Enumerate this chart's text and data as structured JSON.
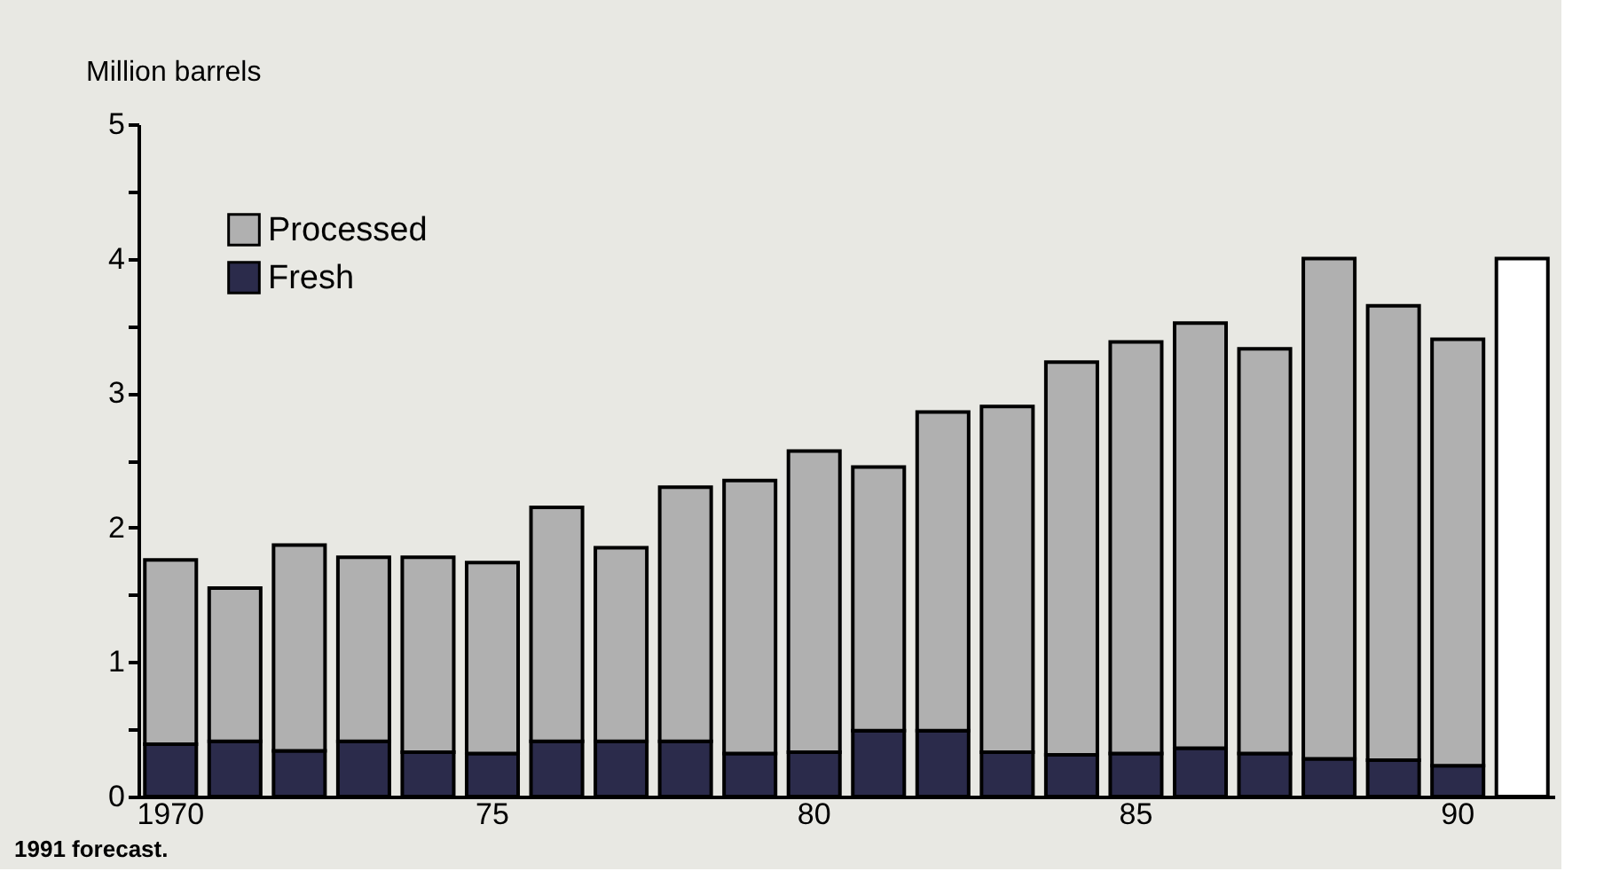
{
  "chart_data": {
    "type": "bar",
    "stacked": true,
    "ylabel": "Million barrels",
    "categories": [
      "1970",
      null,
      null,
      null,
      null,
      "75",
      null,
      null,
      null,
      null,
      "80",
      null,
      null,
      null,
      null,
      "85",
      null,
      null,
      null,
      null,
      "90",
      null
    ],
    "series": [
      {
        "name": "Fresh",
        "color": "#2b2b4b",
        "values": [
          0.39,
          0.41,
          0.34,
          0.41,
          0.33,
          0.32,
          0.41,
          0.41,
          0.41,
          0.32,
          0.33,
          0.49,
          0.49,
          0.33,
          0.31,
          0.32,
          0.36,
          0.32,
          0.28,
          0.27,
          0.23,
          null
        ]
      },
      {
        "name": "Processed",
        "color": "#b0b0b0",
        "values": [
          1.37,
          1.14,
          1.53,
          1.37,
          1.45,
          1.42,
          1.74,
          1.44,
          1.89,
          2.03,
          2.24,
          1.96,
          2.37,
          2.57,
          2.92,
          3.06,
          3.16,
          3.01,
          3.72,
          3.38,
          3.17,
          null
        ]
      },
      {
        "color": "#ffffff",
        "values": [
          null,
          null,
          null,
          null,
          null,
          null,
          null,
          null,
          null,
          null,
          null,
          null,
          null,
          null,
          null,
          null,
          null,
          null,
          null,
          null,
          null,
          4.0
        ]
      }
    ],
    "ylim": [
      0,
      5
    ],
    "yticks": [
      0,
      {
        "value": 0.5,
        "label": null
      },
      1,
      {
        "value": 1.5,
        "label": null
      },
      2,
      {
        "value": 2.5,
        "label": null
      },
      3,
      {
        "value": 3.5,
        "label": null
      },
      4,
      {
        "value": 4.5,
        "label": null
      },
      5
    ],
    "grid": false,
    "legend": "top left",
    "annotations": [
      "1991 forecast."
    ]
  }
}
